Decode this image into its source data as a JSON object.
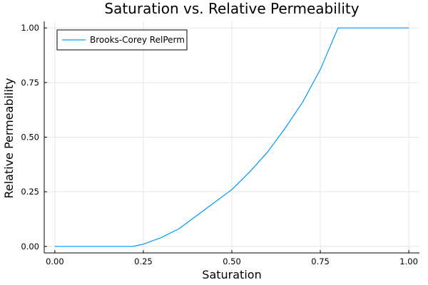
{
  "chart_data": {
    "type": "line",
    "title": "Saturation vs. Relative Permeability",
    "xlabel": "Saturation",
    "ylabel": "Relative Permeability",
    "xlim": [
      -0.03,
      1.03
    ],
    "ylim": [
      -0.03,
      1.03
    ],
    "grid": true,
    "legend_position": "top-left",
    "x_ticks": [
      {
        "value": 0.0,
        "label": "0.00"
      },
      {
        "value": 0.25,
        "label": "0.25"
      },
      {
        "value": 0.5,
        "label": "0.50"
      },
      {
        "value": 0.75,
        "label": "0.75"
      },
      {
        "value": 1.0,
        "label": "1.00"
      }
    ],
    "y_ticks": [
      {
        "value": 0.0,
        "label": "0.00"
      },
      {
        "value": 0.25,
        "label": "0.25"
      },
      {
        "value": 0.5,
        "label": "0.50"
      },
      {
        "value": 0.75,
        "label": "0.75"
      },
      {
        "value": 1.0,
        "label": "1.00"
      }
    ],
    "series": [
      {
        "name": "Brooks-Corey RelPerm",
        "color": "#009af9",
        "x": [
          0.0,
          0.05,
          0.1,
          0.15,
          0.2,
          0.22,
          0.25,
          0.3,
          0.35,
          0.4,
          0.45,
          0.5,
          0.55,
          0.6,
          0.65,
          0.7,
          0.75,
          0.8,
          0.85,
          0.9,
          0.95,
          1.0
        ],
        "y": [
          0.0,
          0.0,
          0.0,
          0.0,
          0.0,
          0.0,
          0.01,
          0.04,
          0.08,
          0.14,
          0.2,
          0.26,
          0.34,
          0.43,
          0.54,
          0.66,
          0.81,
          1.0,
          1.0,
          1.0,
          1.0,
          1.0
        ]
      }
    ]
  }
}
